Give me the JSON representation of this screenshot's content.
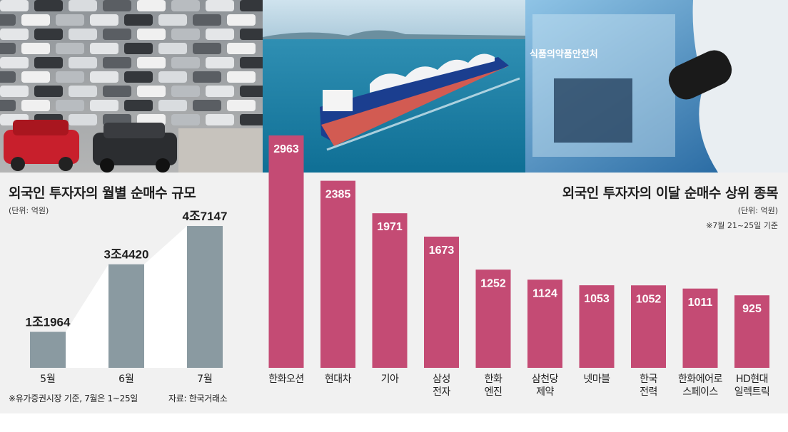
{
  "photos": [
    {
      "icon": "car-lot-photo"
    },
    {
      "icon": "lng-carrier-ship-photo"
    },
    {
      "icon": "lab-microscope-photo",
      "sign_text": "식품의약품안전처"
    }
  ],
  "left": {
    "title": "외국인 투자자의 월별 순매수 규모",
    "unit": "(단위: 억원)",
    "footnote": "※유가증권시장 기준, 7월은 1~25일",
    "source": "자료: 한국거래소"
  },
  "right": {
    "title": "외국인 투자자의 이달 순매수 상위 종목",
    "unit": "(단위: 억원)",
    "note": "※7월 21~25일 기준"
  },
  "colors": {
    "left_bar": "#8a9aa1",
    "right_bar": "#c44b74",
    "area": "#ffffff",
    "background": "#f1f1f1"
  },
  "chart_data": [
    {
      "type": "bar",
      "title": "외국인 투자자의 월별 순매수 규모",
      "unit": "억원",
      "categories": [
        "5월",
        "6월",
        "7월"
      ],
      "values": [
        11964,
        34420,
        47147
      ],
      "value_labels": [
        "1조1964",
        "3조4420",
        "4조7147"
      ],
      "ylim": [
        0,
        50000
      ],
      "grid": false
    },
    {
      "type": "bar",
      "title": "외국인 투자자의 이달 순매수 상위 종목",
      "unit": "억원",
      "categories": [
        [
          "한화오션"
        ],
        [
          "현대차"
        ],
        [
          "기아"
        ],
        [
          "삼성",
          "전자"
        ],
        [
          "한화",
          "엔진"
        ],
        [
          "삼천당",
          "제약"
        ],
        [
          "넷마블"
        ],
        [
          "한국",
          "전력"
        ],
        [
          "한화에어로",
          "스페이스"
        ],
        [
          "HD현대",
          "일렉트릭"
        ]
      ],
      "values": [
        2963,
        2385,
        1971,
        1673,
        1252,
        1124,
        1053,
        1052,
        1011,
        925
      ],
      "ylim": [
        0,
        2963
      ],
      "grid": false
    }
  ]
}
